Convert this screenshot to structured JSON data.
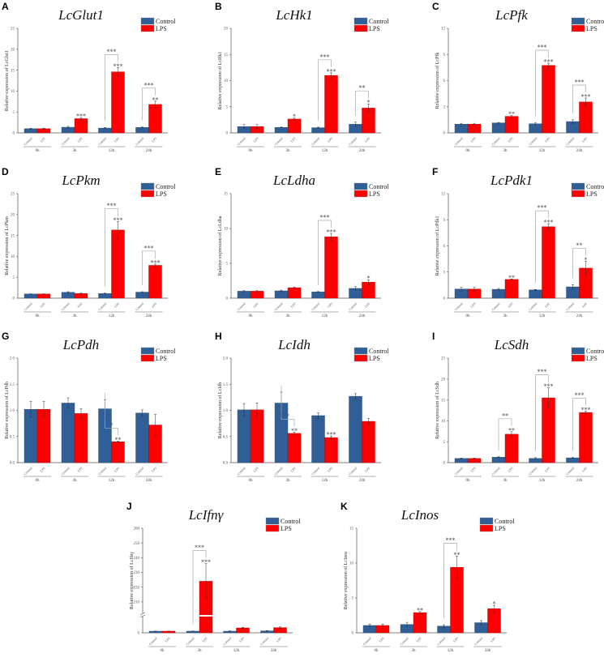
{
  "legend": {
    "control": "Control",
    "lps": "LPS"
  },
  "sublabels": {
    "control": "Control",
    "lps": "LPS"
  },
  "colors": {
    "control": "#2f5f96",
    "lps": "#ff0000"
  },
  "chart_data": [
    {
      "letter": "A",
      "title": "LcGlut1",
      "type": "bar",
      "ylabel": "Relative expression of LcGlut1",
      "ylim": [
        0,
        25
      ],
      "ticks": [
        "0",
        "5",
        "10",
        "15",
        "20",
        "25"
      ],
      "categories": [
        "0h",
        "3h",
        "12h",
        "24h"
      ],
      "series": [
        {
          "name": "Control",
          "values": [
            1,
            1.35,
            1.15,
            1.3
          ],
          "errors": [
            0.1,
            0.2,
            0.15,
            0.15
          ]
        },
        {
          "name": "LPS",
          "values": [
            1,
            3.4,
            14.6,
            6.8
          ],
          "errors": [
            0.1,
            0.3,
            1.0,
            0.8
          ]
        }
      ],
      "sig": [
        "",
        "***",
        "***",
        "**"
      ],
      "bracket": [
        "",
        "",
        "***",
        "***"
      ]
    },
    {
      "letter": "B",
      "title": "LcHk1",
      "type": "bar",
      "ylabel": "Relative expression of LcHk1",
      "ylim": [
        0,
        20
      ],
      "ticks": [
        "0",
        "5",
        "10",
        "15",
        "20"
      ],
      "categories": [
        "0h",
        "3h",
        "12h",
        "24h"
      ],
      "series": [
        {
          "name": "Control",
          "values": [
            1.2,
            1.05,
            1.0,
            1.65
          ],
          "errors": [
            0.4,
            0.1,
            0.1,
            0.4
          ]
        },
        {
          "name": "LPS",
          "values": [
            1.2,
            2.65,
            11.0,
            4.75
          ],
          "errors": [
            0.4,
            0.2,
            0.5,
            0.8
          ]
        }
      ],
      "sig": [
        "",
        "*",
        "***",
        "*"
      ],
      "bracket": [
        "",
        "",
        "***",
        "**"
      ]
    },
    {
      "letter": "C",
      "title": "LcPfk",
      "type": "bar",
      "ylabel": "Relative expression of LcPfk",
      "ylim": [
        0,
        12
      ],
      "ticks": [
        "0",
        "3",
        "6",
        "9",
        "12"
      ],
      "categories": [
        "0h",
        "3h",
        "12h",
        "24h"
      ],
      "series": [
        {
          "name": "Control",
          "values": [
            1.0,
            1.15,
            1.05,
            1.3
          ],
          "errors": [
            0.1,
            0.05,
            0.1,
            0.2
          ]
        },
        {
          "name": "LPS",
          "values": [
            1.0,
            1.9,
            7.75,
            3.55
          ],
          "errors": [
            0.1,
            0.1,
            0.25,
            0.45
          ]
        }
      ],
      "sig": [
        "",
        "**",
        "***",
        "***"
      ],
      "bracket": [
        "",
        "",
        "***",
        "***"
      ]
    },
    {
      "letter": "D",
      "title": "LcPkm",
      "type": "bar",
      "ylabel": "Relative expression of LcPkm",
      "ylim": [
        0,
        25
      ],
      "ticks": [
        "0",
        "5",
        "10",
        "15",
        "20",
        "25"
      ],
      "categories": [
        "0h",
        "3h",
        "12h",
        "24h"
      ],
      "series": [
        {
          "name": "Control",
          "values": [
            1.0,
            1.4,
            1.1,
            1.45
          ],
          "errors": [
            0.05,
            0.15,
            0.1,
            0.1
          ]
        },
        {
          "name": "LPS",
          "values": [
            1.0,
            1.1,
            16.3,
            7.85
          ],
          "errors": [
            0.05,
            0.1,
            2.0,
            0.3
          ]
        }
      ],
      "sig": [
        "",
        "",
        "***",
        "***"
      ],
      "bracket": [
        "",
        "",
        "***",
        "***"
      ]
    },
    {
      "letter": "E",
      "title": "LcLdha",
      "type": "bar",
      "ylabel": "Relative expression of LcLdha",
      "ylim": [
        0,
        15
      ],
      "ticks": [
        "0",
        "5",
        "10",
        "15"
      ],
      "categories": [
        "0h",
        "3h",
        "12h",
        "24h"
      ],
      "series": [
        {
          "name": "Control",
          "values": [
            1.0,
            1.05,
            0.9,
            1.4
          ],
          "errors": [
            0.1,
            0.1,
            0.05,
            0.25
          ]
        },
        {
          "name": "LPS",
          "values": [
            1.0,
            1.5,
            8.8,
            2.3
          ],
          "errors": [
            0.1,
            0.1,
            0.5,
            0.35
          ]
        }
      ],
      "sig": [
        "",
        "",
        "***",
        "*"
      ],
      "bracket": [
        "",
        "",
        "***",
        ""
      ]
    },
    {
      "letter": "F",
      "title": "LcPdk1",
      "type": "bar",
      "ylabel": "Relative expression of LcPdk1",
      "ylim": [
        0,
        12
      ],
      "ticks": [
        "0",
        "3",
        "6",
        "9",
        "12"
      ],
      "categories": [
        "0h",
        "3h",
        "12h",
        "24h"
      ],
      "series": [
        {
          "name": "Control",
          "values": [
            1.05,
            1.02,
            0.95,
            1.3
          ],
          "errors": [
            0.2,
            0.1,
            0.05,
            0.25
          ]
        },
        {
          "name": "LPS",
          "values": [
            1.05,
            2.15,
            8.2,
            3.45
          ],
          "errors": [
            0.2,
            0.05,
            0.35,
            0.8
          ]
        }
      ],
      "sig": [
        "",
        "**",
        "***",
        "*"
      ],
      "bracket": [
        "",
        "",
        "***",
        "**"
      ]
    },
    {
      "letter": "G",
      "title": "LcPdh",
      "type": "bar",
      "ylabel": "Relative expression of LcPdh",
      "ylim": [
        0,
        2
      ],
      "ticks": [
        "0.0",
        "0.5",
        "1.0",
        "1.5",
        "2.0"
      ],
      "categories": [
        "0h",
        "3h",
        "12h",
        "24h"
      ],
      "series": [
        {
          "name": "Control",
          "values": [
            1.02,
            1.14,
            1.03,
            0.95
          ],
          "errors": [
            0.15,
            0.1,
            0.17,
            0.06
          ]
        },
        {
          "name": "LPS",
          "values": [
            1.02,
            0.94,
            0.4,
            0.72
          ],
          "errors": [
            0.15,
            0.09,
            0.01,
            0.2
          ]
        }
      ],
      "sig": [
        "",
        "",
        "**",
        ""
      ],
      "bracket": [
        "",
        "",
        "*",
        ""
      ]
    },
    {
      "letter": "H",
      "title": "LcIdh",
      "type": "bar",
      "ylabel": "Relative expression of LcIdh",
      "ylim": [
        0,
        2
      ],
      "ticks": [
        "0.0",
        "0.5",
        "1.0",
        "1.5",
        "2.0"
      ],
      "categories": [
        "0h",
        "3h",
        "12h",
        "24h"
      ],
      "series": [
        {
          "name": "Control",
          "values": [
            1.01,
            1.14,
            0.9,
            1.27
          ],
          "errors": [
            0.12,
            0.21,
            0.05,
            0.05
          ]
        },
        {
          "name": "LPS",
          "values": [
            1.01,
            0.56,
            0.48,
            0.79
          ],
          "errors": [
            0.13,
            0.02,
            0.03,
            0.06
          ]
        }
      ],
      "sig": [
        "",
        "**",
        "***",
        ""
      ],
      "bracket": [
        "",
        "*",
        "",
        ""
      ]
    },
    {
      "letter": "I",
      "title": "LcSdh",
      "type": "bar",
      "ylabel": "Relative expression of LcSdh",
      "ylim": [
        0,
        25
      ],
      "ticks": [
        "0",
        "5",
        "10",
        "15",
        "20",
        "25"
      ],
      "categories": [
        "0h",
        "3h",
        "12h",
        "24h"
      ],
      "series": [
        {
          "name": "Control",
          "values": [
            1.0,
            1.3,
            1.0,
            1.15
          ],
          "errors": [
            0.1,
            0.1,
            0.2,
            0.1
          ]
        },
        {
          "name": "LPS",
          "values": [
            1.0,
            6.8,
            15.5,
            12.0
          ],
          "errors": [
            0.1,
            0.6,
            2.4,
            0.3
          ]
        }
      ],
      "sig": [
        "",
        "**",
        "***",
        "***"
      ],
      "bracket": [
        "",
        "**",
        "***",
        "***"
      ]
    },
    {
      "letter": "J",
      "title": "LcIfnγ",
      "type": "bar",
      "ylabel": "Relative expression of LcIfnγ",
      "ylim": [
        0,
        260
      ],
      "axis_break": [
        10,
        200
      ],
      "ticks": [
        "0",
        "210",
        "220",
        "230",
        "240",
        "250",
        "260"
      ],
      "categories": [
        "0h",
        "3h",
        "12h",
        "24h"
      ],
      "series": [
        {
          "name": "Control",
          "values": [
            1.0,
            1.0,
            1.0,
            1.2
          ],
          "errors": [
            0.1,
            0.1,
            0.2,
            0.2
          ]
        },
        {
          "name": "LPS",
          "values": [
            1.0,
            224,
            3.0,
            3.2
          ],
          "errors": [
            0.1,
            12,
            0.4,
            0.4
          ]
        }
      ],
      "sig": [
        "",
        "***",
        "",
        ""
      ],
      "bracket": [
        "",
        "***",
        "",
        ""
      ]
    },
    {
      "letter": "K",
      "title": "LcInos",
      "type": "bar",
      "ylabel": "Relative expression of LcInos",
      "ylim": [
        0,
        15
      ],
      "ticks": [
        "0",
        "5",
        "10",
        "15"
      ],
      "categories": [
        "0h",
        "3h",
        "12h",
        "24h"
      ],
      "series": [
        {
          "name": "Control",
          "values": [
            1.05,
            1.2,
            0.95,
            1.45
          ],
          "errors": [
            0.2,
            0.3,
            0.2,
            0.3
          ]
        },
        {
          "name": "LPS",
          "values": [
            1.05,
            2.9,
            9.4,
            3.45
          ],
          "errors": [
            0.2,
            0.15,
            1.6,
            0.5
          ]
        }
      ],
      "sig": [
        "",
        "**",
        "**",
        "*"
      ],
      "bracket": [
        "",
        "",
        "***",
        ""
      ]
    }
  ]
}
